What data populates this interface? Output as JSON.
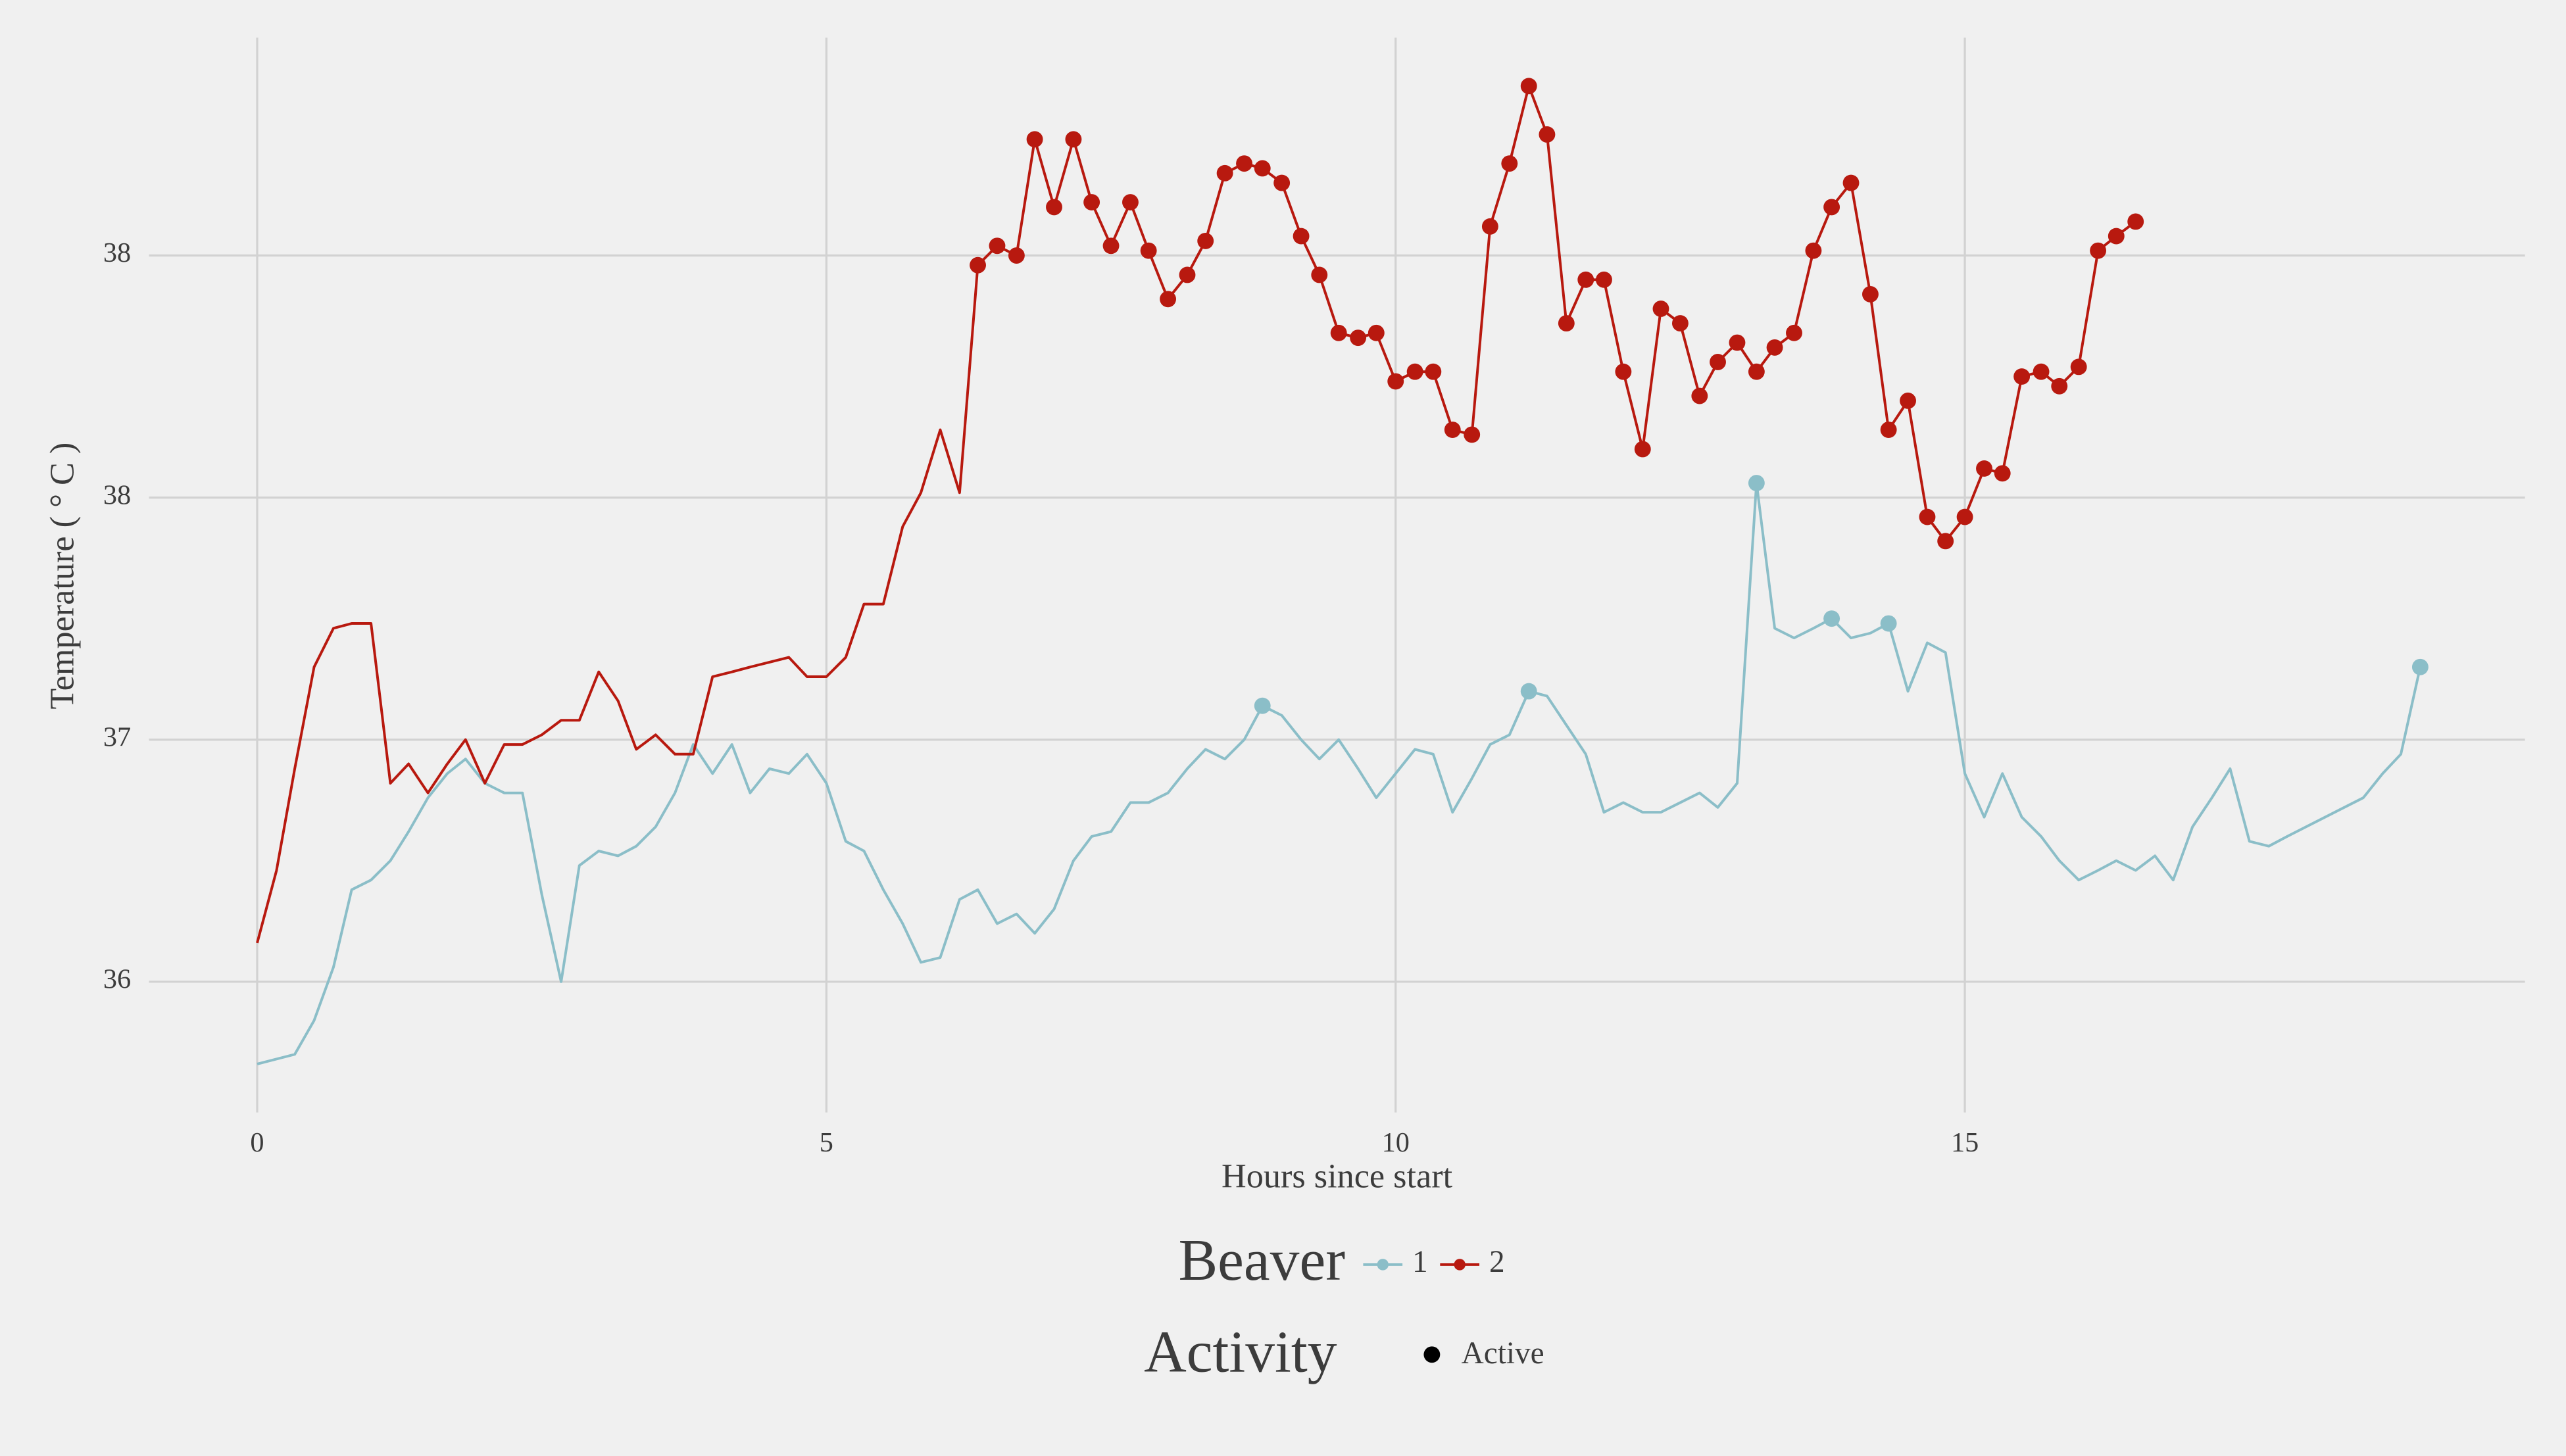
{
  "chart_data": {
    "type": "line",
    "x_label": "Hours since start",
    "y_label": "Temperature ( ° C )",
    "legend_title": "Beaver",
    "activity_legend": {
      "title": "Activity",
      "label": "Active",
      "color": "#000000"
    },
    "xlim": [
      -0.95,
      19.92
    ],
    "xticks": [
      0,
      5,
      10,
      15
    ],
    "ylim": [
      36.23,
      38.45
    ],
    "yticks": [
      {
        "value": 36.5,
        "label": "36"
      },
      {
        "value": 37,
        "label": "37"
      },
      {
        "value": 37.5,
        "label": "38"
      },
      {
        "value": 38,
        "label": "38"
      }
    ],
    "grid": true,
    "series": [
      {
        "name": "1",
        "color": "#8bbec8",
        "x": [
          0,
          0.33,
          0.5,
          0.67,
          0.83,
          1,
          1.17,
          1.33,
          1.5,
          1.67,
          1.83,
          2,
          2.17,
          2.33,
          2.5,
          2.67,
          2.83,
          3,
          3.17,
          3.33,
          3.5,
          3.67,
          3.83,
          4,
          4.17,
          4.33,
          4.5,
          4.67,
          4.83,
          5,
          5.17,
          5.33,
          5.5,
          5.67,
          5.83,
          6,
          6.17,
          6.33,
          6.5,
          6.67,
          6.83,
          7,
          7.17,
          7.33,
          7.5,
          7.67,
          7.83,
          8,
          8.17,
          8.33,
          8.5,
          8.67,
          8.83,
          9,
          9.17,
          9.33,
          9.5,
          9.67,
          9.83,
          10,
          10.17,
          10.33,
          10.5,
          10.67,
          10.83,
          11,
          11.17,
          11.33,
          11.5,
          11.67,
          11.83,
          12,
          12.17,
          12.33,
          12.5,
          12.67,
          12.83,
          13,
          13.17,
          13.33,
          13.5,
          13.67,
          13.83,
          14,
          14.17,
          14.33,
          14.5,
          14.67,
          14.83,
          15,
          15.17,
          15.33,
          15.5,
          15.67,
          15.83,
          16,
          16.17,
          16.33,
          16.5,
          16.67,
          16.83,
          17,
          17.17,
          17.33,
          17.5,
          17.67,
          17.83,
          18.5,
          18.67,
          18.83,
          19
        ],
        "values": [
          36.33,
          36.35,
          36.42,
          36.53,
          36.69,
          36.71,
          36.75,
          36.81,
          36.88,
          36.93,
          36.96,
          36.91,
          36.89,
          36.89,
          36.68,
          36.5,
          36.74,
          36.77,
          36.76,
          36.78,
          36.82,
          36.89,
          36.99,
          36.93,
          36.99,
          36.89,
          36.94,
          36.93,
          36.97,
          36.91,
          36.79,
          36.77,
          36.69,
          36.62,
          36.54,
          36.55,
          36.67,
          36.69,
          36.62,
          36.64,
          36.6,
          36.65,
          36.75,
          36.8,
          36.81,
          36.87,
          36.87,
          36.89,
          36.94,
          36.98,
          36.96,
          37.0,
          37.07,
          37.05,
          37.0,
          36.96,
          37.0,
          36.94,
          36.88,
          36.93,
          36.98,
          36.97,
          36.85,
          36.92,
          36.99,
          37.01,
          37.1,
          37.09,
          37.03,
          36.97,
          36.85,
          36.87,
          36.85,
          36.85,
          36.87,
          36.89,
          36.86,
          36.91,
          37.53,
          37.23,
          37.21,
          37.23,
          37.25,
          37.21,
          37.22,
          37.24,
          37.1,
          37.2,
          37.18,
          36.93,
          36.84,
          36.93,
          36.84,
          36.8,
          36.75,
          36.71,
          36.73,
          36.75,
          36.73,
          36.76,
          36.71,
          36.82,
          36.88,
          36.94,
          36.79,
          36.78,
          36.8,
          36.88,
          36.93,
          36.97,
          37.15
        ],
        "active": [
          false,
          false,
          false,
          false,
          false,
          false,
          false,
          false,
          false,
          false,
          false,
          false,
          false,
          false,
          false,
          false,
          false,
          false,
          false,
          false,
          false,
          false,
          false,
          false,
          false,
          false,
          false,
          false,
          false,
          false,
          false,
          false,
          false,
          false,
          false,
          false,
          false,
          false,
          false,
          false,
          false,
          false,
          false,
          false,
          false,
          false,
          false,
          false,
          false,
          false,
          false,
          false,
          true,
          false,
          false,
          false,
          false,
          false,
          false,
          false,
          false,
          false,
          false,
          false,
          false,
          false,
          true,
          false,
          false,
          false,
          false,
          false,
          false,
          false,
          false,
          false,
          false,
          false,
          true,
          false,
          false,
          false,
          true,
          false,
          false,
          true,
          false,
          false,
          false,
          false,
          false,
          false,
          false,
          false,
          false,
          false,
          false,
          false,
          false,
          false,
          false,
          false,
          false,
          false,
          false,
          false,
          false,
          false,
          false,
          false,
          true
        ]
      },
      {
        "name": "2",
        "color": "#b8190f",
        "x": [
          0,
          0.17,
          0.33,
          0.5,
          0.67,
          0.83,
          1,
          1.17,
          1.33,
          1.5,
          1.67,
          1.83,
          2,
          2.17,
          2.33,
          2.5,
          2.67,
          2.83,
          3,
          3.17,
          3.33,
          3.5,
          3.67,
          3.83,
          4,
          4.17,
          4.33,
          4.5,
          4.67,
          4.83,
          5,
          5.17,
          5.33,
          5.5,
          5.67,
          5.83,
          6,
          6.17,
          6.33,
          6.5,
          6.67,
          6.83,
          7,
          7.17,
          7.33,
          7.5,
          7.67,
          7.83,
          8,
          8.17,
          8.33,
          8.5,
          8.67,
          8.83,
          9,
          9.17,
          9.33,
          9.5,
          9.67,
          9.83,
          10,
          10.17,
          10.33,
          10.5,
          10.67,
          10.83,
          11,
          11.17,
          11.33,
          11.5,
          11.67,
          11.83,
          12,
          12.17,
          12.33,
          12.5,
          12.67,
          12.83,
          13,
          13.17,
          13.33,
          13.5,
          13.67,
          13.83,
          14,
          14.17,
          14.33,
          14.5,
          14.67,
          14.83,
          15,
          15.17,
          15.33,
          15.5,
          15.67,
          15.83,
          16,
          16.17,
          16.33,
          16.5
        ],
        "values": [
          36.58,
          36.73,
          36.94,
          37.15,
          37.23,
          37.24,
          37.24,
          36.91,
          36.95,
          36.89,
          36.95,
          37.0,
          36.91,
          36.99,
          36.99,
          37.01,
          37.04,
          37.04,
          37.14,
          37.08,
          36.98,
          37.01,
          36.97,
          36.97,
          37.13,
          37.14,
          37.15,
          37.16,
          37.17,
          37.13,
          37.13,
          37.17,
          37.28,
          37.28,
          37.44,
          37.51,
          37.64,
          37.51,
          37.98,
          38.02,
          38.0,
          38.24,
          38.1,
          38.24,
          38.11,
          38.02,
          38.11,
          38.01,
          37.91,
          37.96,
          38.03,
          38.17,
          38.19,
          38.18,
          38.15,
          38.04,
          37.96,
          37.84,
          37.83,
          37.84,
          37.74,
          37.76,
          37.76,
          37.64,
          37.63,
          38.06,
          38.19,
          38.35,
          38.25,
          37.86,
          37.95,
          37.95,
          37.76,
          37.6,
          37.89,
          37.86,
          37.71,
          37.78,
          37.82,
          37.76,
          37.81,
          37.84,
          38.01,
          38.1,
          38.15,
          37.92,
          37.64,
          37.7,
          37.46,
          37.41,
          37.46,
          37.56,
          37.55,
          37.75,
          37.76,
          37.73,
          37.77,
          38.01,
          38.04,
          38.07
        ],
        "active": [
          false,
          false,
          false,
          false,
          false,
          false,
          false,
          false,
          false,
          false,
          false,
          false,
          false,
          false,
          false,
          false,
          false,
          false,
          false,
          false,
          false,
          false,
          false,
          false,
          false,
          false,
          false,
          false,
          false,
          false,
          false,
          false,
          false,
          false,
          false,
          false,
          false,
          false,
          true,
          true,
          true,
          true,
          true,
          true,
          true,
          true,
          true,
          true,
          true,
          true,
          true,
          true,
          true,
          true,
          true,
          true,
          true,
          true,
          true,
          true,
          true,
          true,
          true,
          true,
          true,
          true,
          true,
          true,
          true,
          true,
          true,
          true,
          true,
          true,
          true,
          true,
          true,
          true,
          true,
          true,
          true,
          true,
          true,
          true,
          true,
          true,
          true,
          true,
          true,
          true,
          true,
          true,
          true,
          true,
          true,
          true,
          true,
          true,
          true,
          true
        ]
      }
    ]
  }
}
